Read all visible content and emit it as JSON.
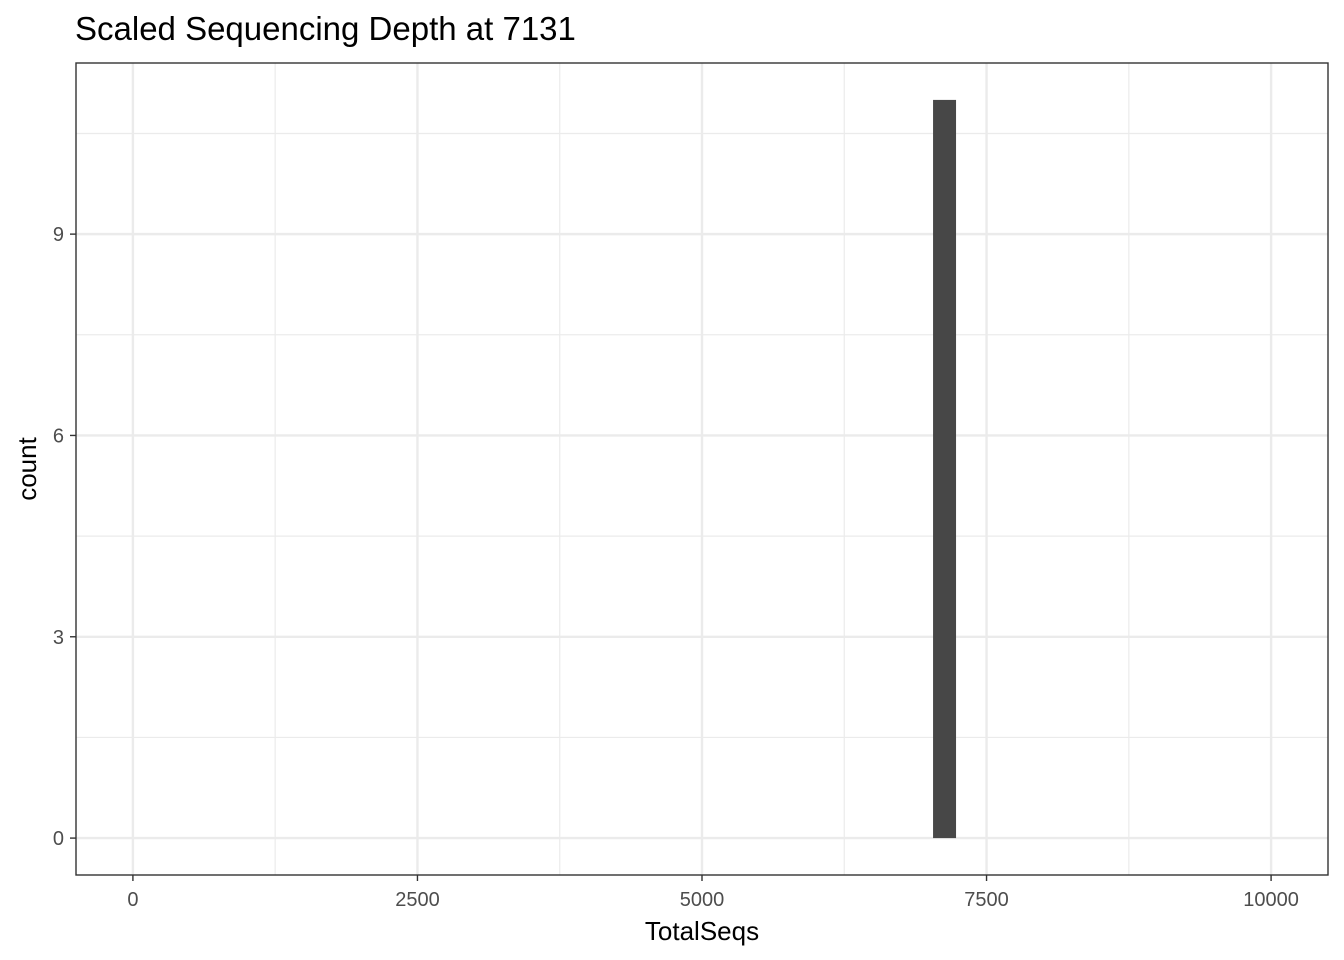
{
  "chart_data": {
    "type": "bar",
    "title": "Scaled Sequencing Depth at 7131",
    "xlabel": "TotalSeqs",
    "ylabel": "count",
    "xlim": [
      -500,
      10500
    ],
    "ylim": [
      -0.55,
      11.55
    ],
    "x_ticks": [
      0,
      2500,
      5000,
      7500,
      10000
    ],
    "x_tick_labels": [
      "0",
      "2500",
      "5000",
      "7500",
      "10000"
    ],
    "x_minor_ticks": [
      1250,
      3750,
      6250,
      8750
    ],
    "y_ticks": [
      0,
      3,
      6,
      9
    ],
    "y_tick_labels": [
      "0",
      "3",
      "6",
      "9"
    ],
    "y_minor_ticks": [
      1.5,
      4.5,
      7.5,
      10.5
    ],
    "bins": [
      {
        "x_min": 7030,
        "x_max": 7232,
        "count": 11
      }
    ],
    "grid": true,
    "colors": {
      "bar": "#474747",
      "grid": "#ebebeb",
      "border": "#333333",
      "tick_text": "#4d4d4d"
    }
  }
}
